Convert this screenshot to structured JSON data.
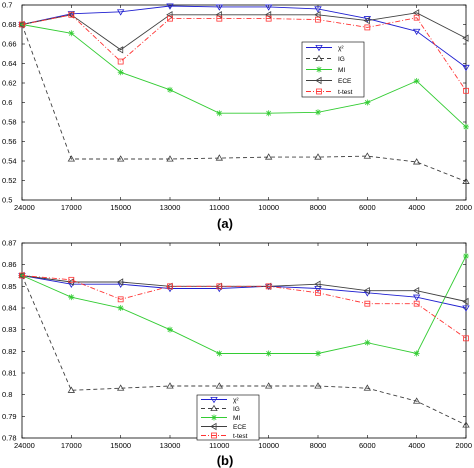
{
  "panel_labels": [
    "(a)",
    "(b)"
  ],
  "legend_labels": [
    "χ²",
    "IG",
    "MI",
    "ECE",
    "t-test"
  ],
  "series_colors": [
    "#2020d0",
    "#404040",
    "#33cc33",
    "#404040",
    "#ff3333"
  ],
  "chart_data": [
    {
      "type": "line",
      "title": "",
      "xlabel": "",
      "ylabel": "",
      "x": [
        "24000",
        "17000",
        "15000",
        "13000",
        "11000",
        "10000",
        "8000",
        "6000",
        "4000",
        "2000"
      ],
      "ylim": [
        0.5,
        0.7
      ],
      "yticks": [
        "0.5",
        "0.52",
        "0.54",
        "0.56",
        "0.58",
        "0.6",
        "0.62",
        "0.64",
        "0.66",
        "0.68",
        "0.7"
      ],
      "legend_position": "right",
      "series": [
        {
          "name": "χ²",
          "values": [
            0.68,
            0.691,
            0.693,
            0.699,
            0.698,
            0.698,
            0.696,
            0.686,
            0.673,
            0.636
          ],
          "color": "#2020d0",
          "dash": "",
          "marker": "tri-down"
        },
        {
          "name": "IG",
          "values": [
            0.68,
            0.542,
            0.542,
            0.542,
            0.543,
            0.544,
            0.544,
            0.545,
            0.539,
            0.519
          ],
          "color": "#404040",
          "dash": "4,3",
          "marker": "tri-up"
        },
        {
          "name": "MI",
          "values": [
            0.68,
            0.671,
            0.631,
            0.613,
            0.589,
            0.589,
            0.59,
            0.6,
            0.622,
            0.575
          ],
          "color": "#33cc33",
          "dash": "",
          "marker": "star"
        },
        {
          "name": "ECE",
          "values": [
            0.68,
            0.69,
            0.654,
            0.69,
            0.69,
            0.69,
            0.69,
            0.684,
            0.692,
            0.666
          ],
          "color": "#404040",
          "dash": "",
          "marker": "tri-left"
        },
        {
          "name": "t-test",
          "values": [
            0.68,
            0.69,
            0.642,
            0.686,
            0.686,
            0.686,
            0.685,
            0.677,
            0.687,
            0.612
          ],
          "color": "#ff3333",
          "dash": "5,2,1,2",
          "marker": "square"
        }
      ]
    },
    {
      "type": "line",
      "title": "",
      "xlabel": "",
      "ylabel": "",
      "x": [
        "24000",
        "17000",
        "15000",
        "13000",
        "11000",
        "10000",
        "8000",
        "6000",
        "4000",
        "2000"
      ],
      "ylim": [
        0.78,
        0.87
      ],
      "yticks": [
        "0.78",
        "0.79",
        "0.8",
        "0.81",
        "0.82",
        "0.83",
        "0.84",
        "0.85",
        "0.86",
        "0.87"
      ],
      "legend_position": "bottom-center",
      "series": [
        {
          "name": "χ²",
          "values": [
            0.855,
            0.851,
            0.851,
            0.849,
            0.849,
            0.85,
            0.849,
            0.847,
            0.845,
            0.84
          ],
          "color": "#2020d0",
          "dash": "",
          "marker": "tri-down"
        },
        {
          "name": "IG",
          "values": [
            0.855,
            0.802,
            0.803,
            0.804,
            0.804,
            0.804,
            0.804,
            0.803,
            0.797,
            0.786
          ],
          "color": "#404040",
          "dash": "4,3",
          "marker": "tri-up"
        },
        {
          "name": "MI",
          "values": [
            0.855,
            0.845,
            0.84,
            0.83,
            0.819,
            0.819,
            0.819,
            0.824,
            0.819,
            0.864
          ],
          "color": "#33cc33",
          "dash": "",
          "marker": "star"
        },
        {
          "name": "ECE",
          "values": [
            0.855,
            0.852,
            0.852,
            0.85,
            0.85,
            0.85,
            0.851,
            0.848,
            0.848,
            0.843
          ],
          "color": "#404040",
          "dash": "",
          "marker": "tri-left"
        },
        {
          "name": "t-test",
          "values": [
            0.855,
            0.853,
            0.844,
            0.85,
            0.85,
            0.85,
            0.847,
            0.842,
            0.842,
            0.826
          ],
          "color": "#ff3333",
          "dash": "5,2,1,2",
          "marker": "square"
        }
      ]
    }
  ]
}
